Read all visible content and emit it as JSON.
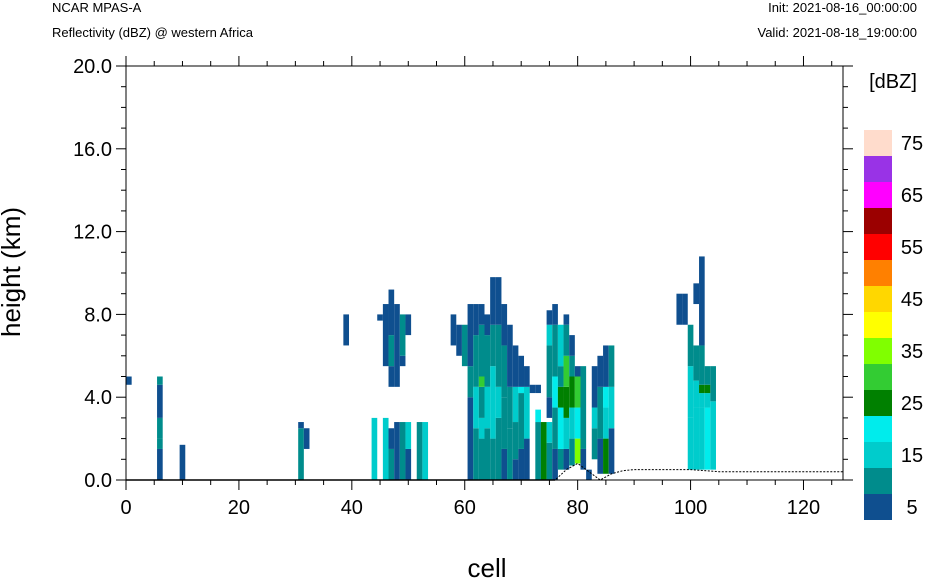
{
  "header": {
    "source": "NCAR MPAS-A",
    "field": "Reflectivity (dBZ) @ western Africa",
    "init": "Init: 2021-08-16_00:00:00",
    "valid": "Valid: 2021-08-18_19:00:00"
  },
  "chart_data": {
    "type": "heatmap",
    "xlabel": "cell",
    "ylabel": "height (km)",
    "xlim": [
      0,
      127
    ],
    "ylim": [
      0,
      20
    ],
    "xticks": [
      "0",
      "20",
      "40",
      "60",
      "80",
      "100",
      "120"
    ],
    "yticks": [
      "0.0",
      "4.0",
      "8.0",
      "12.0",
      "16.0",
      "20.0"
    ],
    "colorbar": {
      "unit": "[dBZ]",
      "labels": [
        "5",
        "15",
        "25",
        "35",
        "45",
        "55",
        "65",
        "75"
      ],
      "colors": [
        "#0f4f8f",
        "#008c8c",
        "#00cccc",
        "#00ecec",
        "#008000",
        "#33cc33",
        "#80ff00",
        "#ffff00",
        "#ffd700",
        "#ff8000",
        "#ff0000",
        "#9b0000",
        "#ff00ff",
        "#9933e6",
        "#ffdccc"
      ]
    },
    "terrain": [
      [
        0,
        0
      ],
      [
        76,
        0
      ],
      [
        78,
        0.5
      ],
      [
        80,
        0.8
      ],
      [
        82,
        0.4
      ],
      [
        84,
        0
      ],
      [
        86,
        0.3
      ],
      [
        88,
        0.45
      ],
      [
        90,
        0.5
      ],
      [
        95,
        0.5
      ],
      [
        100,
        0.5
      ],
      [
        105,
        0.4
      ],
      [
        110,
        0.4
      ],
      [
        127,
        0.4
      ]
    ],
    "cells": [
      {
        "x": 0.5,
        "y0": 4.6,
        "y1": 5.0,
        "c": 0
      },
      {
        "x": 6,
        "y0": 0,
        "y1": 1.5,
        "c": 0
      },
      {
        "x": 6,
        "y0": 1.5,
        "y1": 2.0,
        "c": 1
      },
      {
        "x": 6,
        "y0": 2.0,
        "y1": 3.0,
        "c": 1
      },
      {
        "x": 6,
        "y0": 3.0,
        "y1": 4.6,
        "c": 0
      },
      {
        "x": 6,
        "y0": 4.6,
        "y1": 5.0,
        "c": 1
      },
      {
        "x": 10,
        "y0": 0,
        "y1": 1.7,
        "c": 0
      },
      {
        "x": 31,
        "y0": 0,
        "y1": 2.5,
        "c": 1
      },
      {
        "x": 31,
        "y0": 2.5,
        "y1": 2.8,
        "c": 0
      },
      {
        "x": 32,
        "y0": 1.5,
        "y1": 2.5,
        "c": 0
      },
      {
        "x": 39,
        "y0": 6.5,
        "y1": 8.0,
        "c": 0
      },
      {
        "x": 44,
        "y0": 0,
        "y1": 3.0,
        "c": 2
      },
      {
        "x": 45,
        "y0": 7.7,
        "y1": 8.0,
        "c": 0
      },
      {
        "x": 46,
        "y0": 0,
        "y1": 3.0,
        "c": 2
      },
      {
        "x": 46,
        "y0": 5.5,
        "y1": 8.5,
        "c": 0
      },
      {
        "x": 47,
        "y0": 0,
        "y1": 1.5,
        "c": 1
      },
      {
        "x": 47,
        "y0": 1.5,
        "y1": 2.5,
        "c": 0
      },
      {
        "x": 47,
        "y0": 4.5,
        "y1": 5.5,
        "c": 0
      },
      {
        "x": 47,
        "y0": 5.5,
        "y1": 7.0,
        "c": 1
      },
      {
        "x": 47,
        "y0": 7.0,
        "y1": 9.2,
        "c": 0
      },
      {
        "x": 48,
        "y0": 0,
        "y1": 2.8,
        "c": 0
      },
      {
        "x": 48,
        "y0": 4.5,
        "y1": 8.5,
        "c": 0
      },
      {
        "x": 49,
        "y0": 0,
        "y1": 2.8,
        "c": 1
      },
      {
        "x": 49,
        "y0": 5.5,
        "y1": 6.0,
        "c": 0
      },
      {
        "x": 49,
        "y0": 6.0,
        "y1": 8.0,
        "c": 1
      },
      {
        "x": 50,
        "y0": 0,
        "y1": 1.5,
        "c": 0
      },
      {
        "x": 50,
        "y0": 1.5,
        "y1": 2.8,
        "c": 2
      },
      {
        "x": 50,
        "y0": 7.0,
        "y1": 8.0,
        "c": 0
      },
      {
        "x": 52,
        "y0": 0,
        "y1": 2.8,
        "c": 1
      },
      {
        "x": 53,
        "y0": 0,
        "y1": 2.8,
        "c": 2
      },
      {
        "x": 58,
        "y0": 6.5,
        "y1": 8.0,
        "c": 0
      },
      {
        "x": 59,
        "y0": 6.0,
        "y1": 7.5,
        "c": 0
      },
      {
        "x": 60,
        "y0": 5.5,
        "y1": 7.5,
        "c": 1
      },
      {
        "x": 61,
        "y0": 0,
        "y1": 4.0,
        "c": 0
      },
      {
        "x": 61,
        "y0": 4.0,
        "y1": 5.5,
        "c": 1
      },
      {
        "x": 61,
        "y0": 5.5,
        "y1": 8.5,
        "c": 0
      },
      {
        "x": 62,
        "y0": 0,
        "y1": 2.5,
        "c": 1
      },
      {
        "x": 62,
        "y0": 2.5,
        "y1": 4.5,
        "c": 2
      },
      {
        "x": 62,
        "y0": 4.5,
        "y1": 7.0,
        "c": 1
      },
      {
        "x": 62,
        "y0": 7.0,
        "y1": 8.5,
        "c": 0
      },
      {
        "x": 63,
        "y0": 0,
        "y1": 2.0,
        "c": 1
      },
      {
        "x": 63,
        "y0": 2.0,
        "y1": 3.0,
        "c": 2
      },
      {
        "x": 63,
        "y0": 3.0,
        "y1": 4.5,
        "c": 1
      },
      {
        "x": 63,
        "y0": 4.5,
        "y1": 5.0,
        "c": 5
      },
      {
        "x": 63,
        "y0": 5.0,
        "y1": 7.5,
        "c": 1
      },
      {
        "x": 63,
        "y0": 7.5,
        "y1": 8.5,
        "c": 0
      },
      {
        "x": 64,
        "y0": 0,
        "y1": 2.5,
        "c": 1
      },
      {
        "x": 64,
        "y0": 2.5,
        "y1": 4.5,
        "c": 2
      },
      {
        "x": 64,
        "y0": 4.5,
        "y1": 7.0,
        "c": 1
      },
      {
        "x": 64,
        "y0": 7.0,
        "y1": 8.0,
        "c": 0
      },
      {
        "x": 65,
        "y0": 0,
        "y1": 2.0,
        "c": 1
      },
      {
        "x": 65,
        "y0": 2.0,
        "y1": 5.5,
        "c": 2
      },
      {
        "x": 65,
        "y0": 5.5,
        "y1": 7.5,
        "c": 1
      },
      {
        "x": 65,
        "y0": 7.5,
        "y1": 9.8,
        "c": 0
      },
      {
        "x": 66,
        "y0": 0,
        "y1": 3.0,
        "c": 1
      },
      {
        "x": 66,
        "y0": 3.0,
        "y1": 4.5,
        "c": 2
      },
      {
        "x": 66,
        "y0": 4.5,
        "y1": 7.5,
        "c": 1
      },
      {
        "x": 66,
        "y0": 7.5,
        "y1": 9.8,
        "c": 0
      },
      {
        "x": 67,
        "y0": 0,
        "y1": 1.5,
        "c": 0
      },
      {
        "x": 67,
        "y0": 1.5,
        "y1": 4.0,
        "c": 1
      },
      {
        "x": 67,
        "y0": 4.0,
        "y1": 6.5,
        "c": 1
      },
      {
        "x": 67,
        "y0": 6.5,
        "y1": 8.5,
        "c": 0
      },
      {
        "x": 68,
        "y0": 0,
        "y1": 2.5,
        "c": 1
      },
      {
        "x": 68,
        "y0": 2.5,
        "y1": 4.5,
        "c": 1
      },
      {
        "x": 68,
        "y0": 4.5,
        "y1": 7.5,
        "c": 0
      },
      {
        "x": 69,
        "y0": 0,
        "y1": 1.0,
        "c": 0
      },
      {
        "x": 69,
        "y0": 1.0,
        "y1": 2.8,
        "c": 1
      },
      {
        "x": 69,
        "y0": 2.8,
        "y1": 4.5,
        "c": 2
      },
      {
        "x": 69,
        "y0": 4.5,
        "y1": 6.5,
        "c": 0
      },
      {
        "x": 70,
        "y0": 0,
        "y1": 1.5,
        "c": 0
      },
      {
        "x": 70,
        "y0": 1.5,
        "y1": 4.2,
        "c": 1
      },
      {
        "x": 70,
        "y0": 4.2,
        "y1": 4.5,
        "c": 3
      },
      {
        "x": 70,
        "y0": 4.5,
        "y1": 6.0,
        "c": 0
      },
      {
        "x": 71,
        "y0": 0,
        "y1": 2.0,
        "c": 0
      },
      {
        "x": 71,
        "y0": 2.0,
        "y1": 4.5,
        "c": 2
      },
      {
        "x": 71,
        "y0": 4.5,
        "y1": 5.5,
        "c": 0
      },
      {
        "x": 72,
        "y0": 4.2,
        "y1": 4.6,
        "c": 0
      },
      {
        "x": 73,
        "y0": 0,
        "y1": 2.8,
        "c": 1
      },
      {
        "x": 73,
        "y0": 2.8,
        "y1": 3.4,
        "c": 3
      },
      {
        "x": 73,
        "y0": 4.2,
        "y1": 4.6,
        "c": 0
      },
      {
        "x": 74,
        "y0": 0,
        "y1": 2.8,
        "c": 4
      },
      {
        "x": 75,
        "y0": 0,
        "y1": 1.8,
        "c": 1
      },
      {
        "x": 75,
        "y0": 1.8,
        "y1": 2.8,
        "c": 2
      },
      {
        "x": 75,
        "y0": 3.0,
        "y1": 4.0,
        "c": 0
      },
      {
        "x": 75,
        "y0": 4.0,
        "y1": 6.5,
        "c": 1
      },
      {
        "x": 75,
        "y0": 6.5,
        "y1": 7.5,
        "c": 2
      },
      {
        "x": 75,
        "y0": 7.5,
        "y1": 8.2,
        "c": 0
      },
      {
        "x": 76,
        "y0": 0,
        "y1": 1.5,
        "c": 0
      },
      {
        "x": 76,
        "y0": 1.5,
        "y1": 3.5,
        "c": 1
      },
      {
        "x": 76,
        "y0": 3.5,
        "y1": 5.0,
        "c": 3
      },
      {
        "x": 76,
        "y0": 5.0,
        "y1": 7.5,
        "c": 1
      },
      {
        "x": 76,
        "y0": 7.5,
        "y1": 8.5,
        "c": 0
      },
      {
        "x": 77,
        "y0": 0.5,
        "y1": 1.5,
        "c": 1
      },
      {
        "x": 77,
        "y0": 1.5,
        "y1": 3.5,
        "c": 3
      },
      {
        "x": 77,
        "y0": 3.5,
        "y1": 4.5,
        "c": 4
      },
      {
        "x": 77,
        "y0": 4.5,
        "y1": 5.5,
        "c": 1
      },
      {
        "x": 77,
        "y0": 5.5,
        "y1": 7.5,
        "c": 2
      },
      {
        "x": 78,
        "y0": 0.5,
        "y1": 1.5,
        "c": 0
      },
      {
        "x": 78,
        "y0": 1.5,
        "y1": 3.0,
        "c": 2
      },
      {
        "x": 78,
        "y0": 3.0,
        "y1": 4.5,
        "c": 4
      },
      {
        "x": 78,
        "y0": 4.5,
        "y1": 6.0,
        "c": 5
      },
      {
        "x": 78,
        "y0": 6.0,
        "y1": 7.5,
        "c": 1
      },
      {
        "x": 78,
        "y0": 7.5,
        "y1": 8.0,
        "c": 0
      },
      {
        "x": 79,
        "y0": 0.7,
        "y1": 2.0,
        "c": 1
      },
      {
        "x": 79,
        "y0": 2.0,
        "y1": 3.5,
        "c": 2
      },
      {
        "x": 79,
        "y0": 3.5,
        "y1": 5.0,
        "c": 4
      },
      {
        "x": 79,
        "y0": 5.0,
        "y1": 6.0,
        "c": 1
      },
      {
        "x": 79,
        "y0": 6.0,
        "y1": 7.0,
        "c": 0
      },
      {
        "x": 80,
        "y0": 0.8,
        "y1": 2.0,
        "c": 6
      },
      {
        "x": 80,
        "y0": 2.0,
        "y1": 3.5,
        "c": 3
      },
      {
        "x": 80,
        "y0": 3.5,
        "y1": 5.0,
        "c": 5
      },
      {
        "x": 80,
        "y0": 5.0,
        "y1": 5.5,
        "c": 0
      },
      {
        "x": 81,
        "y0": 0.5,
        "y1": 1.5,
        "c": 0
      },
      {
        "x": 81,
        "y0": 1.5,
        "y1": 5.5,
        "c": 1
      },
      {
        "x": 82,
        "y0": 0,
        "y1": 0.5,
        "c": 0
      },
      {
        "x": 83,
        "y0": 1.0,
        "y1": 2.5,
        "c": 1
      },
      {
        "x": 83,
        "y0": 2.5,
        "y1": 3.5,
        "c": 2
      },
      {
        "x": 83,
        "y0": 3.5,
        "y1": 5.5,
        "c": 0
      },
      {
        "x": 84,
        "y0": 0.3,
        "y1": 2.0,
        "c": 0
      },
      {
        "x": 84,
        "y0": 2.0,
        "y1": 4.5,
        "c": 1
      },
      {
        "x": 84,
        "y0": 4.5,
        "y1": 6.0,
        "c": 0
      },
      {
        "x": 85,
        "y0": 0.3,
        "y1": 2.0,
        "c": 4
      },
      {
        "x": 85,
        "y0": 2.0,
        "y1": 3.5,
        "c": 2
      },
      {
        "x": 85,
        "y0": 3.5,
        "y1": 4.5,
        "c": 3
      },
      {
        "x": 85,
        "y0": 4.5,
        "y1": 6.5,
        "c": 0
      },
      {
        "x": 86,
        "y0": 0.3,
        "y1": 2.5,
        "c": 0
      },
      {
        "x": 86,
        "y0": 2.5,
        "y1": 4.5,
        "c": 2
      },
      {
        "x": 86,
        "y0": 4.5,
        "y1": 6.5,
        "c": 1
      },
      {
        "x": 98,
        "y0": 7.5,
        "y1": 9.0,
        "c": 0
      },
      {
        "x": 99,
        "y0": 7.5,
        "y1": 9.0,
        "c": 0
      },
      {
        "x": 100,
        "y0": 0.5,
        "y1": 3.0,
        "c": 2
      },
      {
        "x": 100,
        "y0": 3.0,
        "y1": 5.5,
        "c": 2
      },
      {
        "x": 100,
        "y0": 5.5,
        "y1": 7.5,
        "c": 1
      },
      {
        "x": 101,
        "y0": 0.5,
        "y1": 3.5,
        "c": 2
      },
      {
        "x": 101,
        "y0": 3.5,
        "y1": 4.8,
        "c": 2
      },
      {
        "x": 101,
        "y0": 4.8,
        "y1": 6.5,
        "c": 1
      },
      {
        "x": 101,
        "y0": 8.5,
        "y1": 9.5,
        "c": 0
      },
      {
        "x": 102,
        "y0": 0.5,
        "y1": 3.5,
        "c": 2
      },
      {
        "x": 102,
        "y0": 3.5,
        "y1": 4.2,
        "c": 2
      },
      {
        "x": 102,
        "y0": 4.2,
        "y1": 4.6,
        "c": 4
      },
      {
        "x": 102,
        "y0": 4.6,
        "y1": 6.5,
        "c": 1
      },
      {
        "x": 102,
        "y0": 6.5,
        "y1": 10.8,
        "c": 0
      },
      {
        "x": 103,
        "y0": 0.5,
        "y1": 3.5,
        "c": 3
      },
      {
        "x": 103,
        "y0": 3.5,
        "y1": 4.2,
        "c": 2
      },
      {
        "x": 103,
        "y0": 4.2,
        "y1": 4.6,
        "c": 4
      },
      {
        "x": 103,
        "y0": 4.6,
        "y1": 5.5,
        "c": 1
      },
      {
        "x": 104,
        "y0": 0.5,
        "y1": 3.8,
        "c": 2
      },
      {
        "x": 104,
        "y0": 3.8,
        "y1": 5.5,
        "c": 1
      }
    ]
  }
}
